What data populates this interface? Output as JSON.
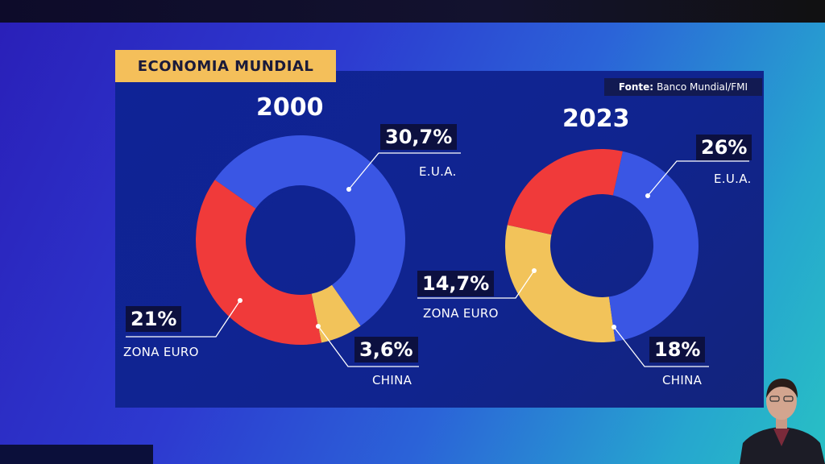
{
  "title": "ECONOMIA MUNDIAL",
  "source_label": "Fonte:",
  "source_text": "Banco Mundial/FMI",
  "colors": {
    "eua": "#3a56e4",
    "zona_euro": "#f03a3a",
    "china": "#f2c35a",
    "banner": "#f4bf5a"
  },
  "chart_data": [
    {
      "type": "pie",
      "title": "2000",
      "slices": [
        {
          "label": "E.U.A.",
          "value": 30.7,
          "display": "30,7%"
        },
        {
          "label": "ZONA EURO",
          "value": 21,
          "display": "21%"
        },
        {
          "label": "CHINA",
          "value": 3.6,
          "display": "3,6%"
        }
      ]
    },
    {
      "type": "pie",
      "title": "2023",
      "slices": [
        {
          "label": "E.U.A.",
          "value": 26,
          "display": "26%"
        },
        {
          "label": "ZONA EURO",
          "value": 14.7,
          "display": "14,7%"
        },
        {
          "label": "CHINA",
          "value": 18,
          "display": "18%"
        }
      ]
    }
  ]
}
